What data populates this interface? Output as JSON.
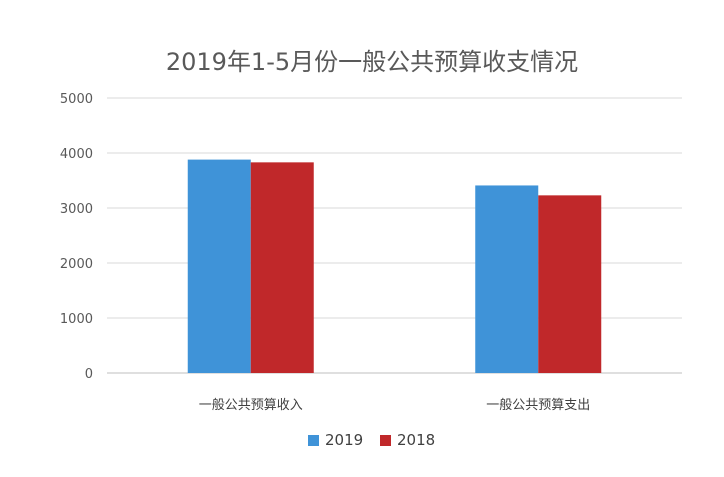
{
  "chart_data": {
    "type": "bar",
    "title": "2019年1-5月份一般公共预算收支情况",
    "categories": [
      "一般公共预算收入",
      "一般公共预算支出"
    ],
    "series": [
      {
        "name": "2019",
        "values": [
          3880,
          3410
        ],
        "color": "#3F93D8"
      },
      {
        "name": "2018",
        "values": [
          3830,
          3230
        ],
        "color": "#C0282A"
      }
    ],
    "xlabel": "",
    "ylabel": "",
    "ylim": [
      0,
      5000
    ],
    "yticks": [
      0,
      1000,
      2000,
      3000,
      4000,
      5000
    ],
    "grid": true,
    "legend_position": "bottom"
  }
}
